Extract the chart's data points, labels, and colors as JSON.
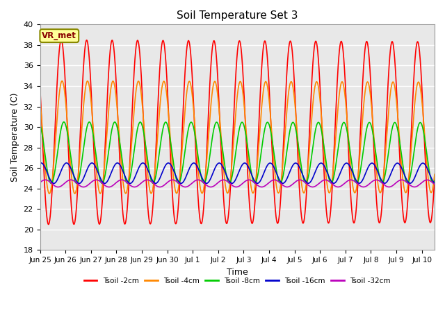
{
  "title": "Soil Temperature Set 3",
  "xlabel": "Time",
  "ylabel": "Soil Temperature (C)",
  "ylim": [
    18,
    40
  ],
  "yticks": [
    18,
    20,
    22,
    24,
    26,
    28,
    30,
    32,
    34,
    36,
    38,
    40
  ],
  "colors": {
    "Tsoil -2cm": "#ff0000",
    "Tsoil -4cm": "#ff8800",
    "Tsoil -8cm": "#00cc00",
    "Tsoil -16cm": "#0000cc",
    "Tsoil -32cm": "#bb00bb"
  },
  "amplitudes": {
    "Tsoil -2cm": 9.0,
    "Tsoil -4cm": 5.5,
    "Tsoil -8cm": 3.0,
    "Tsoil -16cm": 1.0,
    "Tsoil -32cm": 0.35
  },
  "means": {
    "Tsoil -2cm": 29.5,
    "Tsoil -4cm": 29.0,
    "Tsoil -8cm": 27.5,
    "Tsoil -16cm": 25.5,
    "Tsoil -32cm": 24.5
  },
  "phase_shifts_hours": {
    "Tsoil -2cm": 0.0,
    "Tsoil -4cm": 0.8,
    "Tsoil -8cm": 2.5,
    "Tsoil -16cm": 5.0,
    "Tsoil -32cm": 9.0
  },
  "num_days": 15.5,
  "xtick_positions": [
    0,
    1,
    2,
    3,
    4,
    5,
    6,
    7,
    8,
    9,
    10,
    11,
    12,
    13,
    14,
    15
  ],
  "xtick_labels": [
    "Jun 25",
    "Jun 26",
    "Jun 27",
    "Jun 28",
    "Jun 29",
    "Jun 30",
    "Jul 1",
    "Jul 2",
    "Jul 3",
    "Jul 4",
    "Jul 5",
    "Jul 6",
    "Jul 7",
    "Jul 8",
    "Jul 9",
    "Jul 10"
  ],
  "fig_background": "#ffffff",
  "plot_background": "#e8e8e8",
  "grid_color": "#ffffff",
  "annotation_text": "VR_met",
  "annotation_bg": "#ffff99",
  "annotation_border": "#888800",
  "annotation_text_color": "#880000",
  "linewidth": 1.2,
  "series_order": [
    "Tsoil -2cm",
    "Tsoil -4cm",
    "Tsoil -8cm",
    "Tsoil -16cm",
    "Tsoil -32cm"
  ]
}
